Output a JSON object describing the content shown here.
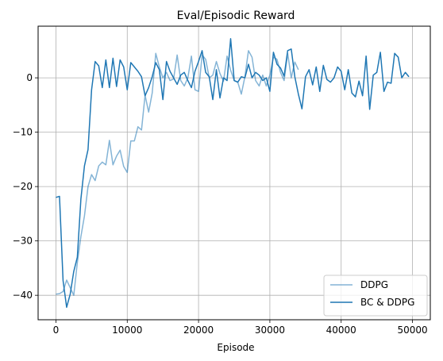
{
  "chart_data": {
    "type": "line",
    "title": "Eval/Episodic Reward",
    "xlabel": "Episode",
    "ylabel": "",
    "xlim": [
      -2500,
      52500
    ],
    "ylim": [
      -44.5,
      9.5
    ],
    "xticks": [
      0,
      10000,
      20000,
      30000,
      40000,
      50000
    ],
    "xtick_labels": [
      "0",
      "10000",
      "20000",
      "30000",
      "40000",
      "50000"
    ],
    "yticks": [
      -40,
      -30,
      -20,
      -10,
      0
    ],
    "ytick_labels": [
      "−40",
      "−30",
      "−20",
      "−10",
      "0"
    ],
    "grid": true,
    "legend_position": "lower-right",
    "series": [
      {
        "name": "DDPG",
        "color": "#1f77b4",
        "alpha": 0.55,
        "x": [
          0,
          500,
          1000,
          1500,
          2000,
          2500,
          3000,
          3500,
          4000,
          4500,
          5000,
          5500,
          6000,
          6500,
          7000,
          7500,
          8000,
          8500,
          9000,
          9500,
          10000,
          10500,
          11000,
          11500,
          12000,
          12500,
          13000,
          13500,
          14000,
          14500,
          15000,
          15500,
          16000,
          16500,
          17000,
          17500,
          18000,
          18500,
          19000,
          19500,
          20000,
          20500,
          21000,
          21500,
          22000,
          22500,
          23000,
          23500,
          24000,
          24500,
          25000,
          25500,
          26000,
          26500,
          27000,
          27500,
          28000,
          28500,
          29000,
          29500,
          30000,
          30500,
          31000,
          31500,
          32000,
          32500,
          33000,
          33500,
          34000
        ],
        "y": [
          -39.8,
          -39.7,
          -39.3,
          -37.2,
          -38.6,
          -40.0,
          -34.0,
          -29.2,
          -25.4,
          -20.0,
          -17.8,
          -18.9,
          -16.2,
          -15.5,
          -16.0,
          -11.5,
          -16.0,
          -14.4,
          -13.3,
          -16.3,
          -17.4,
          -11.6,
          -11.6,
          -9.0,
          -9.6,
          -3.2,
          -6.3,
          -2.8,
          4.5,
          2.0,
          0.0,
          1.0,
          -0.5,
          -0.2,
          4.2,
          -0.5,
          -1.5,
          0.0,
          4.0,
          -2.2,
          -2.5,
          4.2,
          3.4,
          0.0,
          0.5,
          3.0,
          0.8,
          -0.6,
          4.0,
          1.4,
          -0.5,
          -0.8,
          -3.0,
          0.2,
          5.0,
          3.8,
          -0.5,
          -1.5,
          0.5,
          -1.5,
          0.5,
          3.8,
          3.4,
          1.0,
          -0.5,
          4.5,
          0.0,
          2.9,
          1.5
        ]
      },
      {
        "name": "BC & DDPG",
        "color": "#1f77b4",
        "alpha": 1,
        "x": [
          0,
          500,
          1000,
          1500,
          2000,
          2500,
          3000,
          3500,
          4000,
          4500,
          5000,
          5500,
          6000,
          6500,
          7000,
          7500,
          8000,
          8500,
          9000,
          9500,
          10000,
          10500,
          11000,
          11500,
          12000,
          12500,
          13000,
          13500,
          14000,
          14500,
          15000,
          15500,
          16000,
          16500,
          17000,
          17500,
          18000,
          18500,
          19000,
          19500,
          20000,
          20500,
          21000,
          21500,
          22000,
          22500,
          23000,
          23500,
          24000,
          24500,
          25000,
          25500,
          26000,
          26500,
          27000,
          27500,
          28000,
          28500,
          29000,
          29500,
          30000,
          30500,
          31000,
          31500,
          32000,
          32500,
          33000,
          33500,
          34000,
          34500,
          35000,
          35500,
          36000,
          36500,
          37000,
          37500,
          38000,
          38500,
          39000,
          39500,
          40000,
          40500,
          41000,
          41500,
          42000,
          42500,
          43000,
          43500,
          44000,
          44500,
          45000,
          45500,
          46000,
          46500,
          47000,
          47500,
          48000,
          48500,
          49000,
          49500
        ],
        "y": [
          -22.0,
          -21.8,
          -37.3,
          -42.2,
          -39.8,
          -35.6,
          -33.0,
          -22.3,
          -16.2,
          -13.2,
          -2.2,
          3.0,
          2.2,
          -1.8,
          3.3,
          -1.8,
          3.6,
          -1.6,
          3.3,
          2.0,
          -2.2,
          2.8,
          2.0,
          1.2,
          0.2,
          -3.3,
          -1.8,
          0.2,
          2.8,
          1.5,
          -4.0,
          3.0,
          1.2,
          0.0,
          -1.2,
          0.5,
          1.0,
          -0.5,
          -1.8,
          1.2,
          3.0,
          5.0,
          1.0,
          0.2,
          -4.0,
          1.5,
          -3.7,
          0.0,
          -0.5,
          7.2,
          -0.5,
          -0.8,
          0.2,
          0.0,
          2.5,
          0.0,
          1.0,
          0.5,
          -0.5,
          0.0,
          -2.5,
          4.7,
          2.5,
          1.8,
          0.3,
          5.0,
          5.3,
          0.2,
          -3.0,
          -5.7,
          0.2,
          1.5,
          -1.3,
          2.0,
          -2.5,
          2.3,
          -0.3,
          -0.8,
          0.0,
          2.0,
          1.2,
          -2.2,
          1.5,
          -2.8,
          -3.5,
          -0.6,
          -3.3,
          4.0,
          -5.8,
          0.5,
          1.0,
          4.7,
          -2.5,
          -0.8,
          -1.0,
          4.5,
          3.8,
          0.0,
          1.0,
          0.2
        ]
      }
    ]
  }
}
